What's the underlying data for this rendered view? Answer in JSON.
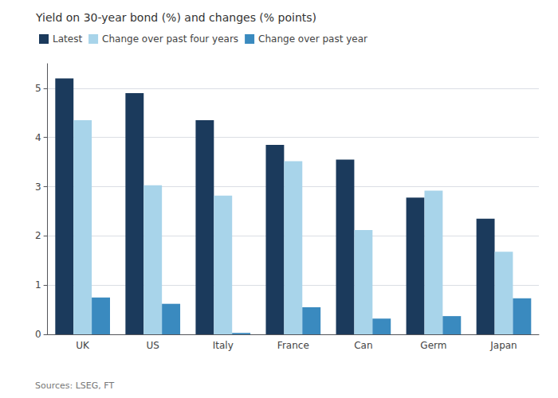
{
  "chart_data": {
    "type": "bar",
    "title": "Yield on 30-year bond (%) and changes (% points)",
    "categories": [
      "UK",
      "US",
      "Italy",
      "France",
      "Can",
      "Germ",
      "Japan"
    ],
    "series": [
      {
        "name": "Latest",
        "color": "#1b3a5c",
        "values": [
          5.2,
          4.9,
          4.35,
          3.85,
          3.55,
          2.78,
          2.35
        ]
      },
      {
        "name": "Change over past four years",
        "color": "#a8d4ea",
        "values": [
          4.35,
          3.03,
          2.82,
          3.52,
          2.12,
          2.92,
          1.68
        ]
      },
      {
        "name": "Change over past year",
        "color": "#3a8abf",
        "values": [
          0.75,
          0.62,
          0.03,
          0.55,
          0.32,
          0.37,
          0.73
        ]
      }
    ],
    "ylim": [
      0,
      5.5
    ],
    "yticks": [
      0,
      1,
      2,
      3,
      4,
      5
    ],
    "grid": true,
    "legend": "top-left",
    "annotations": [
      "Sources: LSEG, FT"
    ]
  }
}
